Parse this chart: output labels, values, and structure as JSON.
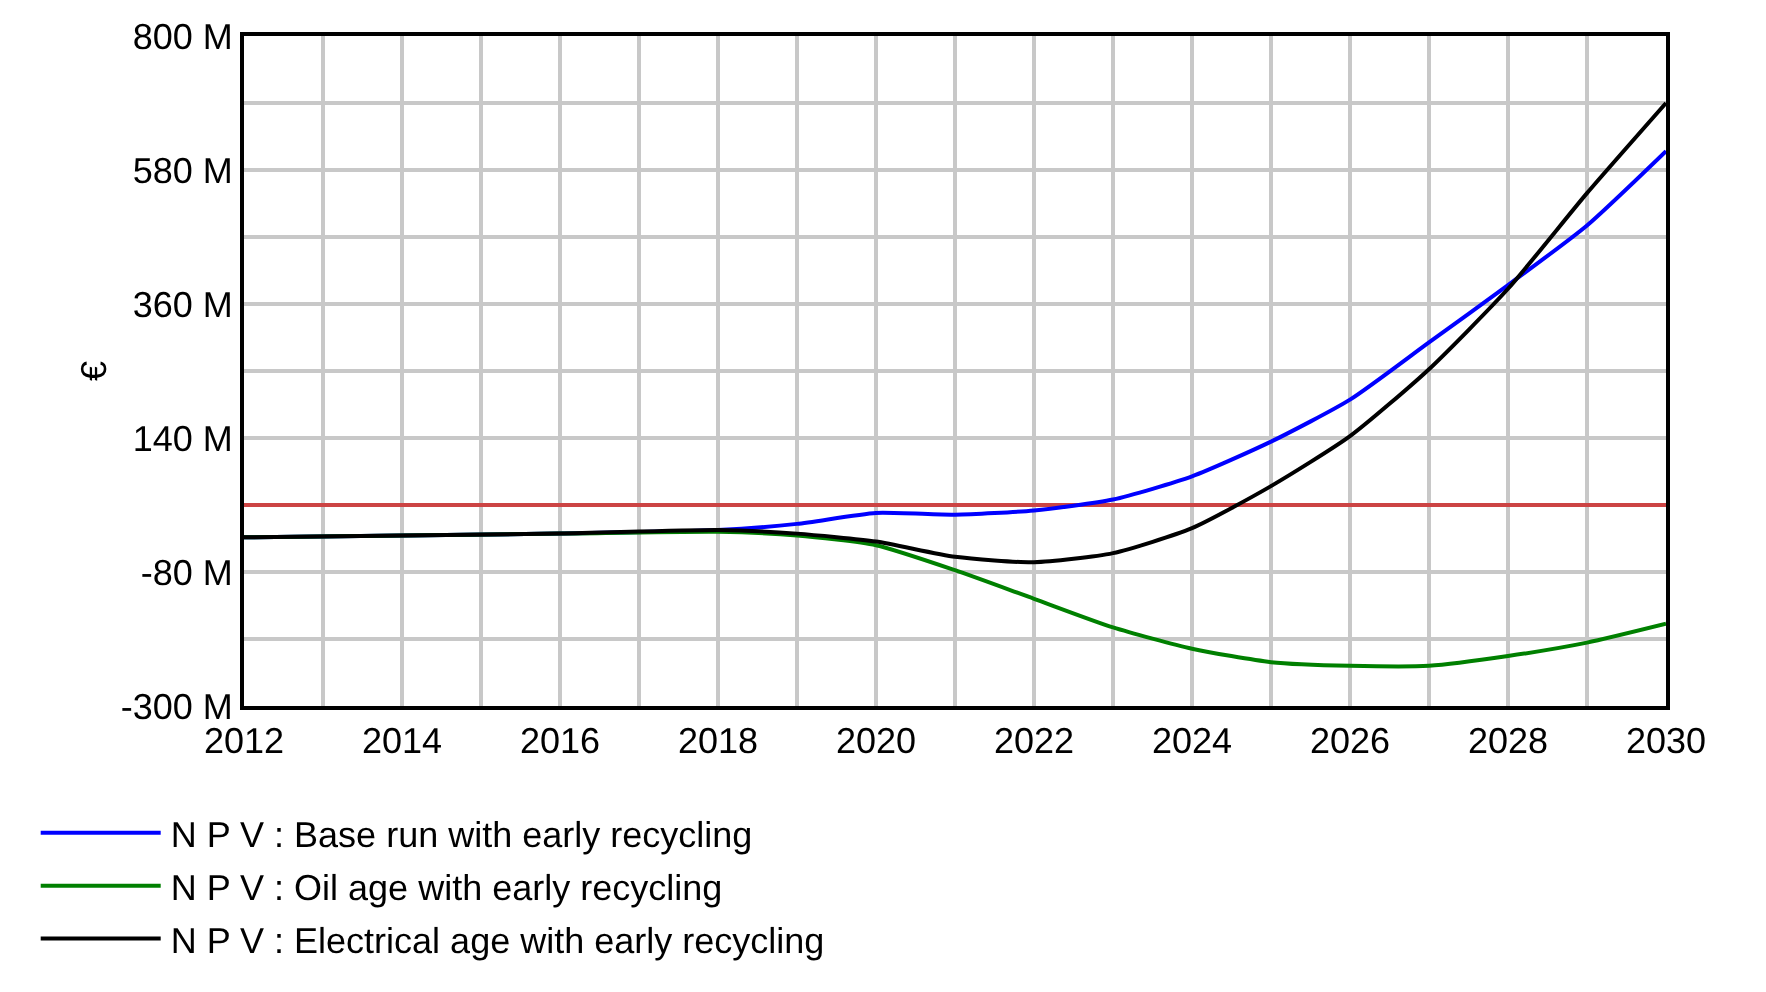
{
  "chart_data": {
    "type": "line",
    "ylabel": "€",
    "x": [
      2012,
      2016,
      2018,
      2019,
      2020,
      2021,
      2022,
      2023,
      2024,
      2025,
      2026,
      2027,
      2028,
      2029,
      2030
    ],
    "series": [
      {
        "name": "N P V : Base run with early recycling",
        "color": "#0000ff",
        "values": [
          -23,
          -17,
          -11,
          -1,
          17,
          14,
          21,
          39,
          77,
          134,
          203,
          297,
          391,
          489,
          611
        ]
      },
      {
        "name": "N P V : Oil age with early recycling",
        "color": "#008000",
        "values": [
          -23,
          -17,
          -14,
          -20,
          -36,
          -77,
          -124,
          -171,
          -206,
          -228,
          -234,
          -234,
          -218,
          -196,
          -165
        ]
      },
      {
        "name": "N P V : Electrical age with early recycling",
        "color": "#000000",
        "values": [
          -23,
          -17,
          -11,
          -17,
          -30,
          -55,
          -64,
          -49,
          -8,
          61,
          143,
          253,
          385,
          542,
          690
        ]
      }
    ],
    "xlim": [
      2012,
      2030
    ],
    "xticks": [
      2012,
      2014,
      2016,
      2018,
      2020,
      2022,
      2024,
      2026,
      2028,
      2030
    ],
    "ylim": [
      -300,
      800
    ],
    "yticks": [
      {
        "value": 800,
        "label": "800 M"
      },
      {
        "value": 580,
        "label": "580 M"
      },
      {
        "value": 360,
        "label": "360 M"
      },
      {
        "value": 140,
        "label": "140 M"
      },
      {
        "value": -80,
        "label": "-80 M"
      },
      {
        "value": -300,
        "label": "-300 M"
      }
    ],
    "ref_lines": [
      {
        "axis": "y",
        "value": 30,
        "color": "#cc4444"
      }
    ],
    "grid": true,
    "legend": "bottom",
    "marker": "none",
    "line_style": "solid"
  }
}
